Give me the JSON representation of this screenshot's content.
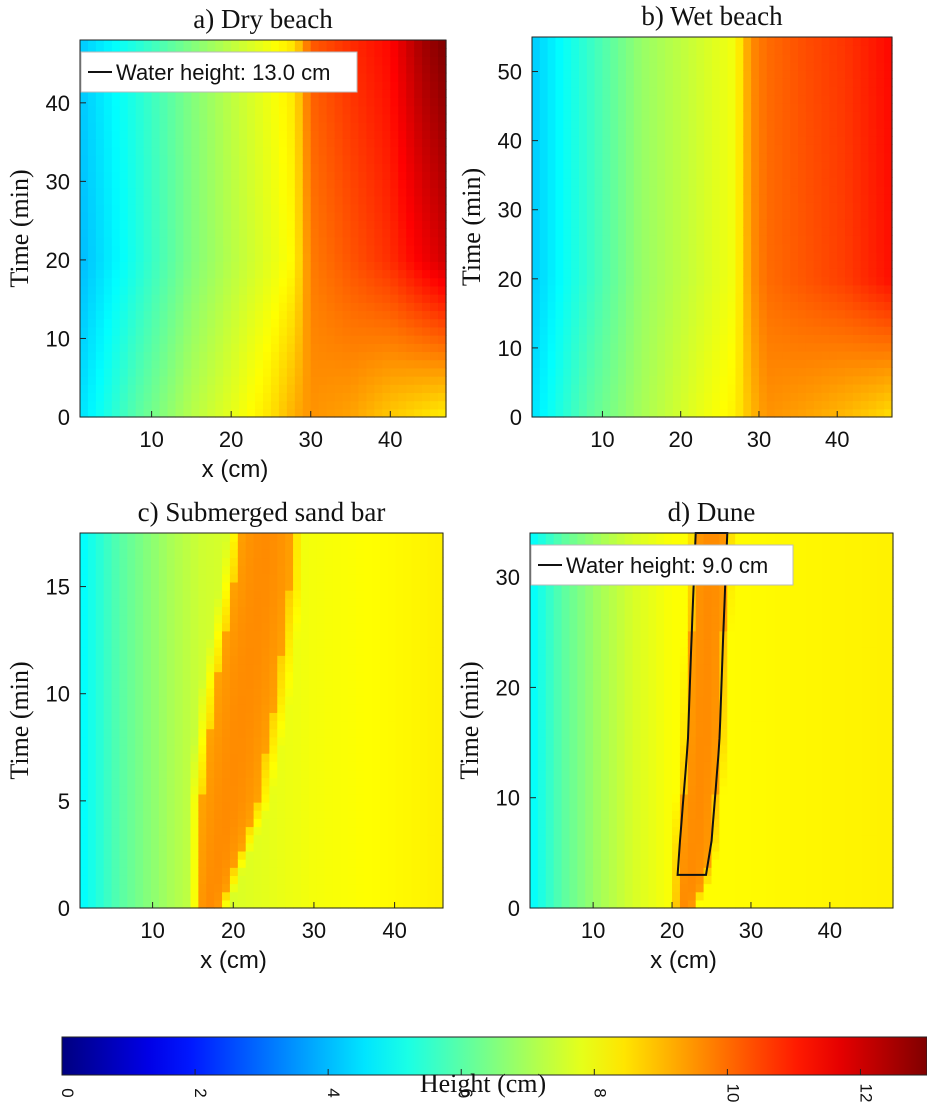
{
  "chart_data": [
    {
      "id": "a",
      "type": "heatmap",
      "title": "a) Dry beach",
      "xlabel": "x (cm)",
      "ylabel": "Time (min)",
      "xlim": [
        1,
        47
      ],
      "ylim": [
        0,
        48
      ],
      "xticks": [
        10,
        20,
        30,
        40
      ],
      "yticks": [
        0,
        10,
        20,
        30,
        40
      ],
      "legend": {
        "label": "Water height: 13.0 cm",
        "placement": "top-left"
      },
      "profile": {
        "x": [
          1,
          8,
          15,
          20,
          25,
          28,
          30,
          35,
          40,
          44,
          47
        ],
        "h_t0": [
          4.5,
          6.0,
          7.2,
          7.8,
          8.5,
          9.2,
          9.5,
          9.3,
          8.8,
          8.5,
          8.3
        ],
        "h_t20": [
          4.0,
          5.2,
          6.5,
          7.2,
          7.8,
          8.2,
          9.8,
          10.3,
          10.8,
          11.5,
          12.0
        ],
        "h_t47": [
          4.2,
          5.3,
          6.5,
          7.3,
          8.0,
          8.5,
          10.2,
          10.8,
          11.3,
          12.5,
          13.0
        ]
      }
    },
    {
      "id": "b",
      "type": "heatmap",
      "title": "b) Wet beach",
      "xlabel": "",
      "ylabel": "Time (min)",
      "xlim": [
        1,
        47
      ],
      "ylim": [
        0,
        55
      ],
      "xticks": [
        10,
        20,
        30,
        40
      ],
      "yticks": [
        0,
        10,
        20,
        30,
        40,
        50
      ],
      "profile": {
        "x": [
          1,
          8,
          15,
          22,
          27,
          29,
          31,
          36,
          41,
          45,
          47
        ],
        "h_t0": [
          4.5,
          6.0,
          7.0,
          7.8,
          8.3,
          9.0,
          9.5,
          9.3,
          9.0,
          8.7,
          8.5
        ],
        "h_t20": [
          4.2,
          5.5,
          6.8,
          7.5,
          8.0,
          9.5,
          10.0,
          10.3,
          10.6,
          11.0,
          11.2
        ],
        "h_t55": [
          4.2,
          5.5,
          6.8,
          7.5,
          8.0,
          9.6,
          10.0,
          10.4,
          10.7,
          11.1,
          11.3
        ]
      }
    },
    {
      "id": "c",
      "type": "heatmap",
      "title": "c) Submerged sand bar",
      "xlabel": "x (cm)",
      "ylabel": "Time (min)",
      "xlim": [
        1,
        46
      ],
      "ylim": [
        0,
        17.5
      ],
      "xticks": [
        10,
        20,
        30,
        40
      ],
      "yticks": [
        0,
        5,
        10,
        15
      ],
      "bar": {
        "t": [
          0,
          5,
          10,
          15,
          17.5
        ],
        "center": [
          17,
          19.5,
          21.5,
          23.5,
          24
        ],
        "halfwidth": [
          1.5,
          3.5,
          3.8,
          3.5,
          3.2
        ],
        "peak": 9.6
      },
      "background": {
        "x": [
          1,
          6,
          12,
          16,
          30,
          46
        ],
        "h": [
          4.8,
          6.0,
          7.0,
          7.5,
          8.0,
          8.3
        ]
      }
    },
    {
      "id": "d",
      "type": "heatmap",
      "title": "d) Dune",
      "xlabel": "x (cm)",
      "ylabel": "Time (min)",
      "xlim": [
        2,
        48
      ],
      "ylim": [
        0,
        34
      ],
      "xticks": [
        10,
        20,
        30,
        40
      ],
      "yticks": [
        0,
        10,
        20,
        30
      ],
      "legend": {
        "label": "Water height: 9.0 cm",
        "placement": "top-left"
      },
      "dune": {
        "t": [
          0,
          3,
          6,
          15,
          25,
          34
        ],
        "center": [
          21.5,
          22.5,
          23,
          24,
          24.5,
          25
        ],
        "halfwidth": [
          1.0,
          1.8,
          2.0,
          2.0,
          2.0,
          2.0
        ],
        "peak": 9.6,
        "contour_t": [
          3,
          34
        ]
      },
      "background": {
        "x": [
          2,
          6,
          11,
          15,
          20,
          48
        ],
        "h": [
          4.8,
          6.0,
          7.0,
          7.6,
          8.1,
          8.3
        ]
      }
    },
    {
      "id": "colorbar",
      "type": "colorbar",
      "label": "Height (cm)",
      "range": [
        0,
        13
      ],
      "ticks": [
        0,
        2,
        4,
        6,
        8,
        10,
        12
      ],
      "colormap": "jet"
    }
  ]
}
